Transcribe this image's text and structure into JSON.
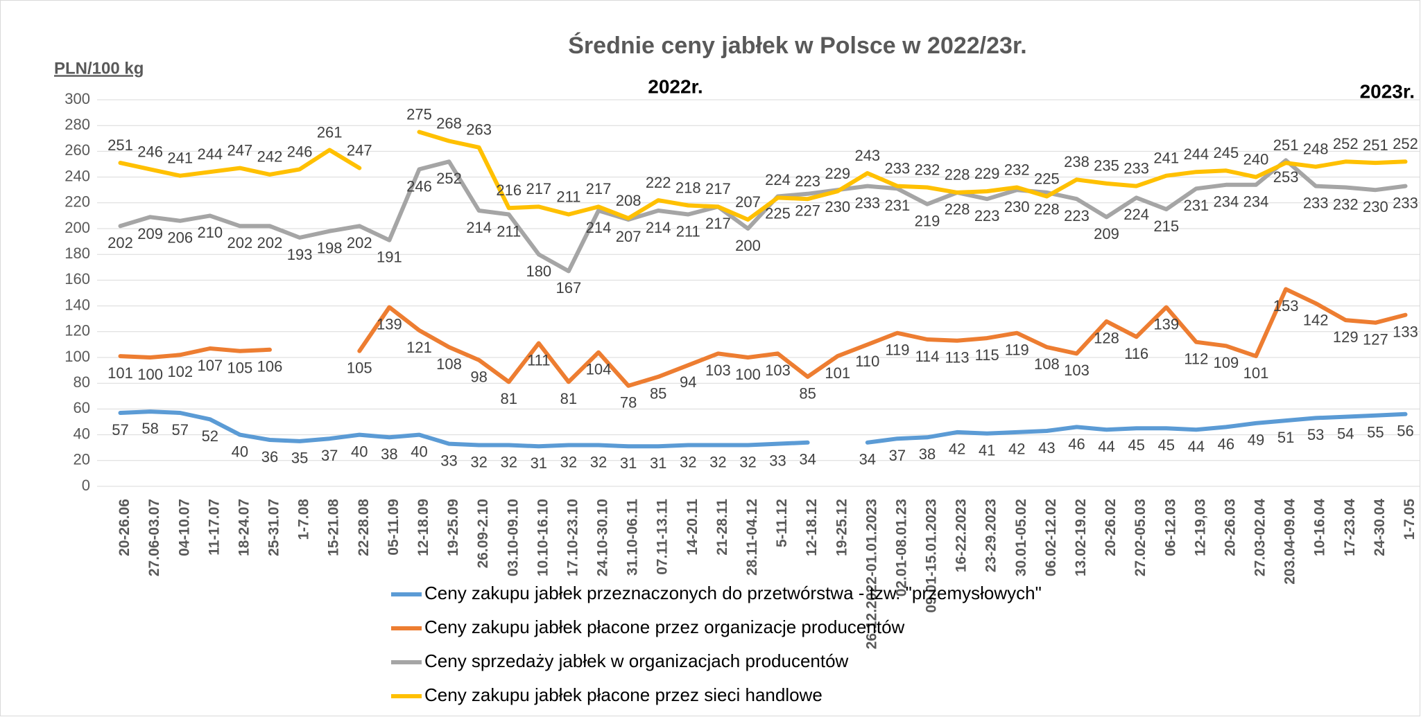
{
  "chart_data": {
    "type": "line",
    "title": "Średnie ceny jabłek w Polsce w 2022/23r.",
    "y_label": "PLN/100 kg",
    "annotations": [
      "2022r.",
      "2023r."
    ],
    "categories": [
      "20-26.06",
      "27.06-03.07",
      "04-10.07",
      "11-17.07",
      "18-24.07",
      "25-31.07",
      "1-7.08",
      "15-21.08",
      "22-28.08",
      "05-11.09",
      "12-18.09",
      "19-25.09",
      "26.09-2.10",
      "03.10-09.10",
      "10.10-16.10",
      "17.10-23.10",
      "24.10-30.10",
      "31.10-06.11",
      "07.11-13.11",
      "14-20.11",
      "21-28.11",
      "28.11-04.12",
      "5-11.12",
      "12-18.12",
      "19-25.12",
      "26.12.2022-01.01.2023",
      "02.01-08.01.23",
      "09.01-15.01.2023",
      "16-22.2023",
      "23-29.2023",
      "30.01-05.02",
      "06.02-12.02",
      "13.02-19.02",
      "20-26.02",
      "27.02-05.03",
      "06-12.03",
      "12-19,03",
      "20-26.03",
      "27.03-02.04",
      "203.04-09.04",
      "10-16.04",
      "17-23.04",
      "24-30.04",
      "1-7.05"
    ],
    "series": [
      {
        "name": "Ceny zakupu jabłek przeznaczonych do przetwórstwa - tzw. \"przemysłowych\"",
        "color": "#5b9bd5",
        "label_position": "below",
        "values": [
          57,
          58,
          57,
          52,
          40,
          36,
          35,
          37,
          40,
          38,
          40,
          33,
          32,
          32,
          31,
          32,
          32,
          31,
          31,
          32,
          32,
          32,
          33,
          34,
          null,
          34,
          37,
          38,
          42,
          41,
          42,
          43,
          46,
          44,
          45,
          45,
          44,
          46,
          49,
          51,
          53,
          54,
          55,
          56
        ]
      },
      {
        "name": "Ceny zakupu jabłek płacone przez organizacje  producentów",
        "color": "#ed7d31",
        "label_position": "below",
        "values": [
          101,
          100,
          102,
          107,
          105,
          106,
          null,
          null,
          105,
          139,
          121,
          108,
          98,
          81,
          111,
          81,
          104,
          78,
          85,
          94,
          103,
          100,
          103,
          85,
          101,
          110,
          119,
          114,
          113,
          115,
          119,
          108,
          103,
          128,
          116,
          139,
          112,
          109,
          101,
          153,
          142,
          129,
          127,
          133
        ]
      },
      {
        "name": "Ceny sprzedaży jabłek w organizacjach  producentów",
        "color": "#a5a5a5",
        "label_position": "below",
        "values": [
          202,
          209,
          206,
          210,
          202,
          202,
          193,
          198,
          202,
          191,
          246,
          252,
          214,
          211,
          180,
          167,
          214,
          207,
          214,
          211,
          217,
          200,
          225,
          227,
          230,
          233,
          231,
          219,
          228,
          223,
          230,
          228,
          223,
          209,
          224,
          215,
          231,
          234,
          234,
          253,
          233,
          232,
          230,
          233
        ]
      },
      {
        "name": "Ceny zakupu jabłek płacone przez sieci handlowe",
        "color": "#ffc000",
        "label_position": "above",
        "values": [
          251,
          246,
          241,
          244,
          247,
          242,
          246,
          261,
          247,
          null,
          275,
          268,
          263,
          216,
          217,
          211,
          217,
          208,
          222,
          218,
          217,
          207,
          224,
          223,
          229,
          243,
          233,
          232,
          228,
          229,
          232,
          225,
          238,
          235,
          233,
          241,
          244,
          245,
          240,
          251,
          248,
          252,
          251,
          252
        ]
      }
    ],
    "ylim": [
      0,
      300
    ],
    "yticks": [
      0,
      20,
      40,
      60,
      80,
      100,
      120,
      140,
      160,
      180,
      200,
      220,
      240,
      260,
      280,
      300
    ],
    "grid": true,
    "legend": "bottom"
  }
}
